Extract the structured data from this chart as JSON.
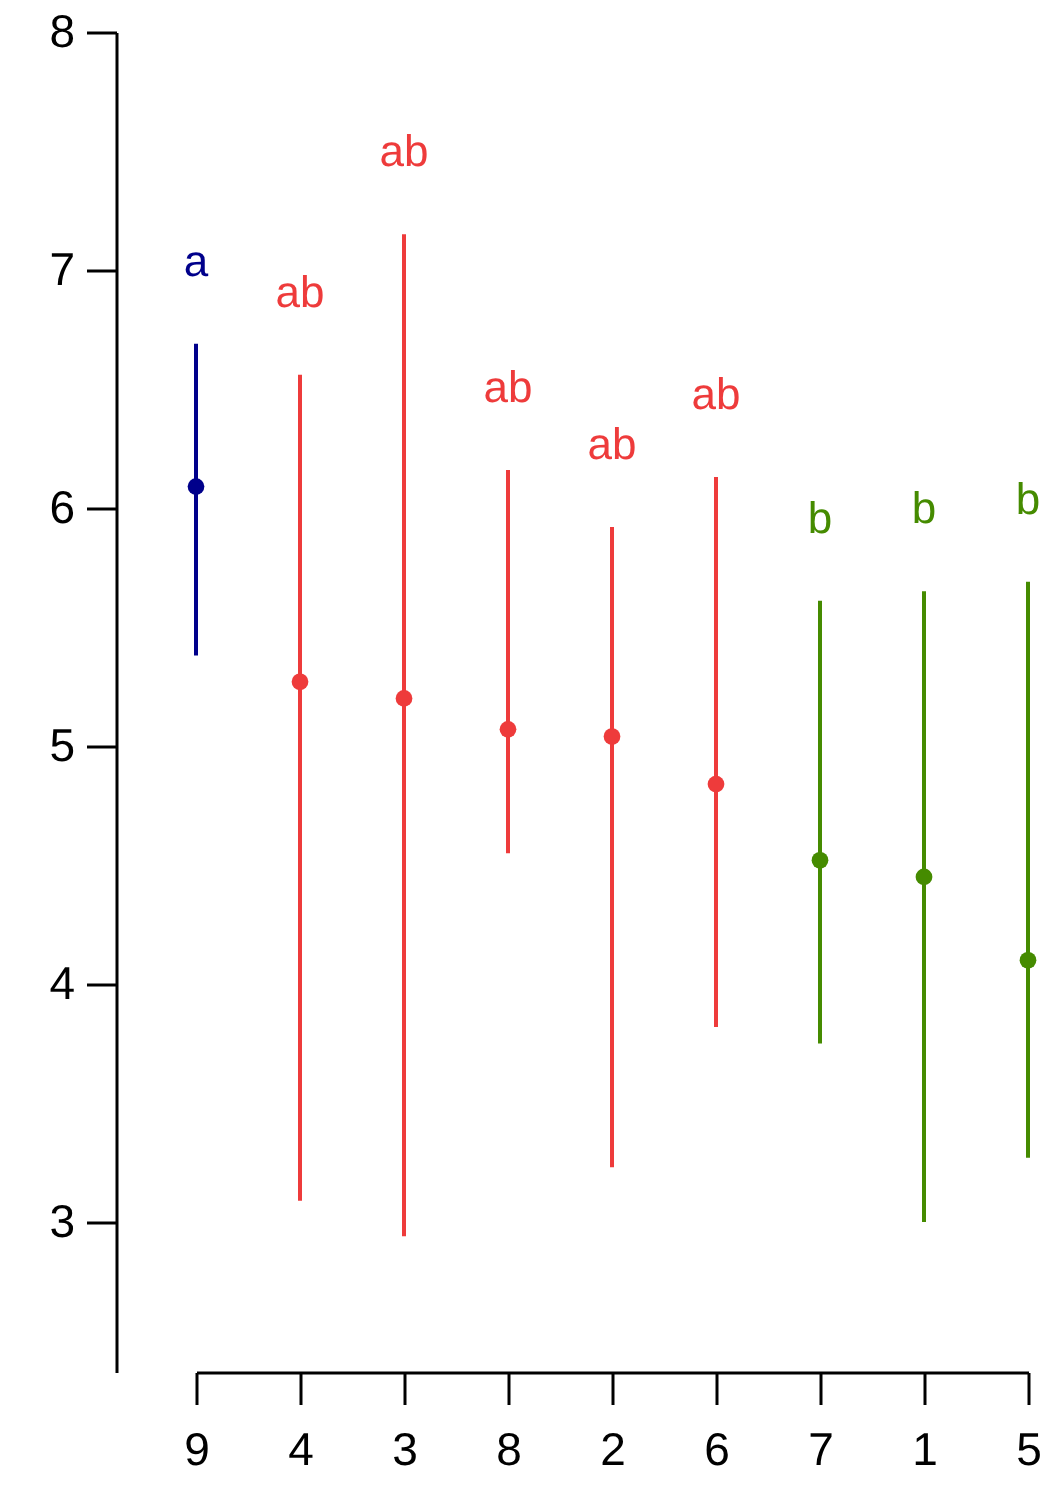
{
  "chart_data": {
    "type": "scatter",
    "categories": [
      "9",
      "4",
      "3",
      "8",
      "2",
      "6",
      "7",
      "1",
      "5"
    ],
    "values": [
      6.09,
      5.27,
      5.2,
      5.07,
      5.04,
      4.84,
      4.52,
      4.45,
      4.1
    ],
    "errors": [
      [
        5.38,
        6.69
      ],
      [
        3.09,
        6.56
      ],
      [
        2.94,
        7.15
      ],
      [
        4.55,
        6.16
      ],
      [
        3.23,
        5.92
      ],
      [
        3.82,
        6.13
      ],
      [
        3.75,
        5.61
      ],
      [
        3.0,
        5.65
      ],
      [
        3.27,
        5.69
      ]
    ],
    "colors": [
      "#00008b",
      "#ee3b3b",
      "#ee3b3b",
      "#ee3b3b",
      "#ee3b3b",
      "#ee3b3b",
      "#458b00",
      "#458b00",
      "#458b00"
    ],
    "annotations": [
      "a",
      "ab",
      "ab",
      "ab",
      "ab",
      "ab",
      "b",
      "b",
      "b"
    ],
    "ylim": [
      2.37,
      8
    ],
    "yticks": [
      3,
      4,
      5,
      6,
      7,
      8
    ],
    "grid": false,
    "marker": "circle"
  }
}
